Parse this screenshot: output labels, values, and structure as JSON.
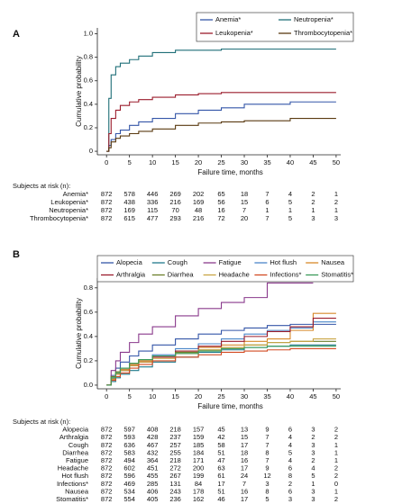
{
  "chart_data": [
    {
      "type": "line",
      "panel_label": "A",
      "step": true,
      "xlabel": "Failure time, months",
      "ylabel": "Cumulative probability",
      "xlim": [
        -2,
        51
      ],
      "xticks": [
        0,
        5,
        10,
        15,
        20,
        25,
        30,
        35,
        40,
        45,
        50
      ],
      "ylim": [
        -0.03,
        1.05
      ],
      "yticks": [
        0,
        0.2,
        0.4,
        0.6,
        0.8,
        {
          "value": 1,
          "label": "1.0"
        }
      ],
      "legend_columns": 2,
      "series": [
        {
          "name": "Anemia*",
          "color": "#3456a8",
          "x": [
            0,
            0.5,
            1,
            2,
            3,
            5,
            7,
            10,
            15,
            20,
            25,
            30,
            40,
            50
          ],
          "values": [
            0,
            0.05,
            0.1,
            0.15,
            0.18,
            0.22,
            0.25,
            0.28,
            0.32,
            0.35,
            0.37,
            0.4,
            0.42,
            0.42
          ]
        },
        {
          "name": "Neutropenia*",
          "color": "#1f6f78",
          "x": [
            0,
            0.5,
            1,
            2,
            3,
            5,
            7,
            10,
            15,
            20,
            25,
            30,
            40,
            50
          ],
          "values": [
            0,
            0.45,
            0.65,
            0.72,
            0.75,
            0.78,
            0.81,
            0.84,
            0.86,
            0.86,
            0.87,
            0.87,
            0.87,
            0.87
          ]
        },
        {
          "name": "Leukopenia*",
          "color": "#9b1c2c",
          "x": [
            0,
            0.5,
            1,
            2,
            3,
            5,
            7,
            10,
            15,
            20,
            25,
            30,
            40,
            50
          ],
          "values": [
            0,
            0.15,
            0.28,
            0.35,
            0.39,
            0.42,
            0.44,
            0.46,
            0.48,
            0.49,
            0.5,
            0.5,
            0.5,
            0.5
          ]
        },
        {
          "name": "Thrombocytopenia*",
          "color": "#5a3a10",
          "x": [
            0,
            0.5,
            1,
            2,
            3,
            5,
            7,
            10,
            15,
            20,
            25,
            30,
            40,
            50
          ],
          "values": [
            0,
            0.03,
            0.08,
            0.11,
            0.13,
            0.15,
            0.17,
            0.19,
            0.22,
            0.24,
            0.25,
            0.26,
            0.28,
            0.28
          ]
        }
      ],
      "risk_table": {
        "title": "Subjects at risk (n):",
        "rows": [
          {
            "name": "Anemia*",
            "values": [
              872,
              578,
              446,
              269,
              202,
              65,
              18,
              7,
              4,
              2,
              1
            ]
          },
          {
            "name": "Leukopenia*",
            "values": [
              872,
              438,
              336,
              216,
              169,
              56,
              15,
              6,
              5,
              2,
              2
            ]
          },
          {
            "name": "Neutropenia*",
            "values": [
              872,
              169,
              115,
              70,
              48,
              16,
              7,
              1,
              1,
              1,
              1
            ]
          },
          {
            "name": "Thrombocytopenia*",
            "values": [
              872,
              615,
              477,
              293,
              216,
              72,
              20,
              7,
              5,
              3,
              3
            ]
          }
        ]
      }
    },
    {
      "type": "line",
      "panel_label": "B",
      "step": true,
      "xlabel": "Failure time, months",
      "ylabel": "Cumulative probability",
      "xlim": [
        -2,
        51
      ],
      "xticks": [
        0,
        5,
        10,
        15,
        20,
        25,
        30,
        35,
        40,
        45,
        50
      ],
      "ylim": [
        -0.03,
        0.88
      ],
      "yticks": [
        {
          "value": 0,
          "label": "0.0"
        },
        0.2,
        0.4,
        0.6,
        0.8
      ],
      "legend_columns": 5,
      "series": [
        {
          "name": "Alopecia",
          "color": "#3456a8",
          "x": [
            0,
            1,
            2,
            3,
            5,
            7,
            10,
            15,
            20,
            25,
            30,
            35,
            40,
            45,
            50
          ],
          "values": [
            0,
            0.08,
            0.14,
            0.19,
            0.24,
            0.28,
            0.33,
            0.38,
            0.42,
            0.45,
            0.47,
            0.49,
            0.5,
            0.5,
            0.5
          ]
        },
        {
          "name": "Cough",
          "color": "#1f7a8c",
          "x": [
            0,
            1,
            2,
            3,
            5,
            7,
            10,
            15,
            20,
            25,
            30,
            35,
            40,
            45,
            50
          ],
          "values": [
            0,
            0.03,
            0.06,
            0.09,
            0.12,
            0.15,
            0.19,
            0.23,
            0.27,
            0.29,
            0.31,
            0.32,
            0.33,
            0.33,
            0.33
          ]
        },
        {
          "name": "Fatigue",
          "color": "#8a3a8c",
          "x": [
            0,
            1,
            2,
            3,
            5,
            7,
            10,
            15,
            20,
            25,
            30,
            35,
            40,
            45,
            50
          ],
          "values": [
            0,
            0.12,
            0.2,
            0.27,
            0.35,
            0.42,
            0.48,
            0.57,
            0.63,
            0.68,
            0.72,
            0.84,
            0.84,
            0.84,
            null
          ]
        },
        {
          "name": "Hot flush",
          "color": "#4a86c8",
          "x": [
            0,
            1,
            2,
            3,
            5,
            7,
            10,
            15,
            20,
            25,
            30,
            35,
            40,
            45,
            50
          ],
          "values": [
            0,
            0.06,
            0.1,
            0.13,
            0.17,
            0.21,
            0.25,
            0.3,
            0.34,
            0.38,
            0.42,
            0.45,
            0.47,
            0.52,
            0.52
          ]
        },
        {
          "name": "Nausea",
          "color": "#d7892a",
          "x": [
            0,
            1,
            2,
            3,
            5,
            7,
            10,
            15,
            20,
            25,
            30,
            35,
            40,
            45,
            50
          ],
          "values": [
            0,
            0.05,
            0.1,
            0.13,
            0.17,
            0.2,
            0.24,
            0.28,
            0.31,
            0.33,
            0.36,
            0.38,
            0.45,
            0.59,
            0.59
          ]
        },
        {
          "name": "Arthralgia",
          "color": "#9b1c2c",
          "x": [
            0,
            1,
            2,
            3,
            5,
            7,
            10,
            15,
            20,
            25,
            30,
            35,
            40,
            45,
            50
          ],
          "values": [
            0,
            0.05,
            0.09,
            0.12,
            0.16,
            0.19,
            0.23,
            0.28,
            0.32,
            0.36,
            0.4,
            0.44,
            0.48,
            0.55,
            0.55
          ]
        },
        {
          "name": "Diarrhea",
          "color": "#6b7f2a",
          "x": [
            0,
            1,
            2,
            3,
            5,
            7,
            10,
            15,
            20,
            25,
            30,
            35,
            40,
            45,
            50
          ],
          "values": [
            0,
            0.07,
            0.11,
            0.14,
            0.18,
            0.21,
            0.24,
            0.27,
            0.29,
            0.31,
            0.33,
            0.35,
            0.36,
            0.36,
            0.36
          ]
        },
        {
          "name": "Headache",
          "color": "#c9a443",
          "x": [
            0,
            1,
            2,
            3,
            5,
            7,
            10,
            15,
            20,
            25,
            30,
            35,
            40,
            45,
            50
          ],
          "values": [
            0,
            0.05,
            0.09,
            0.12,
            0.16,
            0.19,
            0.22,
            0.26,
            0.29,
            0.31,
            0.33,
            0.35,
            0.36,
            0.38,
            0.38
          ]
        },
        {
          "name": "Infections*",
          "color": "#d24a22",
          "x": [
            0,
            1,
            2,
            3,
            5,
            7,
            10,
            15,
            20,
            25,
            30,
            35,
            40,
            45,
            50
          ],
          "values": [
            0,
            0.04,
            0.07,
            0.1,
            0.14,
            0.17,
            0.2,
            0.23,
            0.25,
            0.27,
            0.28,
            0.29,
            0.3,
            0.3,
            0.3
          ]
        },
        {
          "name": "Stomatitis*",
          "color": "#3a9a5a",
          "x": [
            0,
            1,
            2,
            3,
            5,
            7,
            10,
            15,
            20,
            25,
            30,
            35,
            40,
            45,
            50
          ],
          "values": [
            0,
            0.06,
            0.1,
            0.14,
            0.18,
            0.21,
            0.24,
            0.26,
            0.28,
            0.3,
            0.31,
            0.32,
            0.32,
            0.32,
            0.32
          ]
        }
      ],
      "risk_table": {
        "title": "Subjects at risk (n):",
        "rows": [
          {
            "name": "Alopecia",
            "values": [
              872,
              597,
              408,
              218,
              157,
              45,
              13,
              9,
              6,
              3,
              2
            ]
          },
          {
            "name": "Arthralgia",
            "values": [
              872,
              593,
              428,
              237,
              159,
              42,
              15,
              7,
              4,
              2,
              2
            ]
          },
          {
            "name": "Cough",
            "values": [
              872,
              636,
              467,
              257,
              185,
              58,
              17,
              7,
              4,
              3,
              1
            ]
          },
          {
            "name": "Diarrhea",
            "values": [
              872,
              583,
              432,
              255,
              184,
              51,
              18,
              8,
              5,
              3,
              1
            ]
          },
          {
            "name": "Fatigue",
            "values": [
              872,
              494,
              364,
              218,
              171,
              47,
              16,
              7,
              4,
              2,
              1
            ]
          },
          {
            "name": "Headache",
            "values": [
              872,
              602,
              451,
              272,
              200,
              63,
              17,
              9,
              6,
              4,
              2
            ]
          },
          {
            "name": "Hot flush",
            "values": [
              872,
              596,
              455,
              267,
              199,
              61,
              24,
              12,
              8,
              5,
              2
            ]
          },
          {
            "name": "Infections*",
            "values": [
              872,
              469,
              285,
              131,
              84,
              17,
              7,
              3,
              2,
              1,
              0
            ]
          },
          {
            "name": "Nausea",
            "values": [
              872,
              534,
              406,
              243,
              178,
              51,
              16,
              8,
              6,
              3,
              1
            ]
          },
          {
            "name": "Stomatitis*",
            "values": [
              872,
              554,
              405,
              236,
              162,
              46,
              17,
              5,
              3,
              3,
              2
            ]
          }
        ]
      }
    }
  ]
}
